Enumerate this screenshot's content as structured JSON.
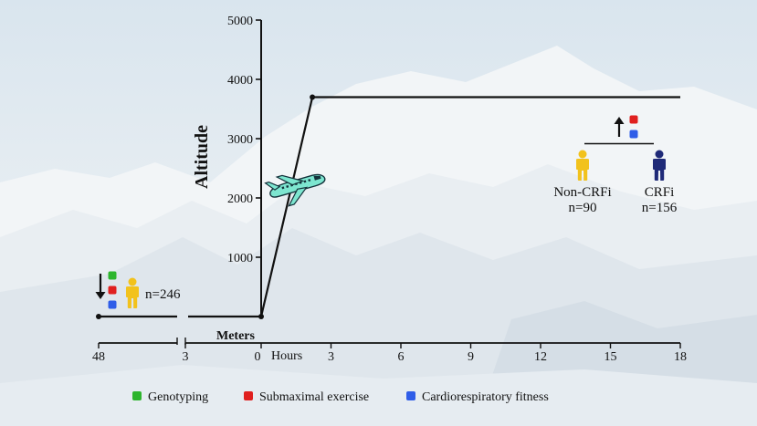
{
  "chart_data": {
    "type": "line",
    "y_axis": {
      "label": "Altitude",
      "unit_label": "Meters",
      "range": [
        0,
        5000
      ],
      "ticks": [
        "5000",
        "4000",
        "3000",
        "2000",
        "1000"
      ]
    },
    "x_axis": {
      "unit_label": "Hours",
      "pre_flight_ticks": [
        "48",
        "3"
      ],
      "post_flight_ticks": [
        "0",
        "3",
        "6",
        "9",
        "12",
        "15",
        "18"
      ]
    },
    "altitude_profile": {
      "before_departure_m": 0,
      "ascent": {
        "start_h": 0,
        "end_h": 2.2,
        "end_altitude_m": 3700
      },
      "plateau_m": 3700,
      "plateau_end_h": 18
    },
    "baseline_group": {
      "count_label": "n=246",
      "arrow": "down"
    },
    "altitude_groups": [
      {
        "name": "Non-CRFi",
        "count_label": "n=90",
        "color": "#f2c21c"
      },
      {
        "name": "CRFi",
        "count_label": "n=156",
        "color": "#1f2a78"
      }
    ],
    "altitude_tests_arrow": "up",
    "legend": [
      {
        "label": "Genotyping",
        "color": "#2db52d"
      },
      {
        "label": "Submaximal exercise",
        "color": "#e0201f"
      },
      {
        "label": "Cardiorespiratory fitness",
        "color": "#2f5de8"
      }
    ]
  },
  "icons": {
    "airplane": "airplane-icon",
    "person": "person-icon",
    "arrow_down": "arrow-down-icon",
    "arrow_up": "arrow-up-icon"
  }
}
